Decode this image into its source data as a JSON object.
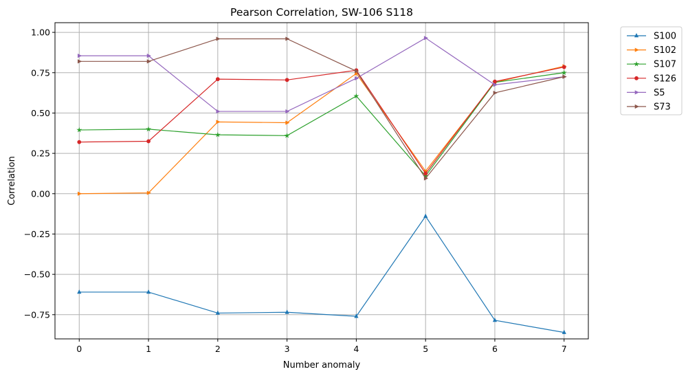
{
  "chart_data": {
    "type": "line",
    "title": "Pearson Correlation, SW-106  S118",
    "xlabel": "Number anomaly",
    "ylabel": "Correlation",
    "x": [
      0,
      1,
      2,
      3,
      4,
      5,
      6,
      7
    ],
    "xlim": [
      -0.35,
      7.35
    ],
    "ylim": [
      -0.9,
      1.06
    ],
    "xticks": [
      "0",
      "1",
      "2",
      "3",
      "4",
      "5",
      "6",
      "7"
    ],
    "yticks": [
      {
        "value": -0.75,
        "label": "−0.75"
      },
      {
        "value": -0.5,
        "label": "−0.50"
      },
      {
        "value": -0.25,
        "label": "−0.25"
      },
      {
        "value": 0.0,
        "label": "0.00"
      },
      {
        "value": 0.25,
        "label": "0.25"
      },
      {
        "value": 0.5,
        "label": "0.50"
      },
      {
        "value": 0.75,
        "label": "0.75"
      },
      {
        "value": 1.0,
        "label": "1.00"
      }
    ],
    "grid": true,
    "legend_position": "outside-top-right",
    "series": [
      {
        "name": "S100",
        "color": "#1f77b4",
        "marker": "triangle-up",
        "values": [
          -0.61,
          -0.61,
          -0.74,
          -0.735,
          -0.76,
          -0.14,
          -0.785,
          -0.86
        ]
      },
      {
        "name": "S102",
        "color": "#ff7f0e",
        "marker": "triangle-right",
        "values": [
          0.0,
          0.005,
          0.445,
          0.44,
          0.745,
          0.14,
          0.69,
          0.79
        ]
      },
      {
        "name": "S107",
        "color": "#2ca02c",
        "marker": "star",
        "values": [
          0.395,
          0.4,
          0.365,
          0.36,
          0.605,
          0.11,
          0.69,
          0.75
        ]
      },
      {
        "name": "S126",
        "color": "#d62728",
        "marker": "circle",
        "values": [
          0.32,
          0.325,
          0.71,
          0.705,
          0.765,
          0.125,
          0.695,
          0.785
        ]
      },
      {
        "name": "S5",
        "color": "#9467bd",
        "marker": "triangle-right",
        "values": [
          0.855,
          0.855,
          0.51,
          0.51,
          0.715,
          0.965,
          0.675,
          0.725
        ]
      },
      {
        "name": "S73",
        "color": "#8c564b",
        "marker": "triangle-right",
        "values": [
          0.82,
          0.82,
          0.96,
          0.96,
          0.76,
          0.095,
          0.625,
          0.725
        ]
      }
    ]
  }
}
